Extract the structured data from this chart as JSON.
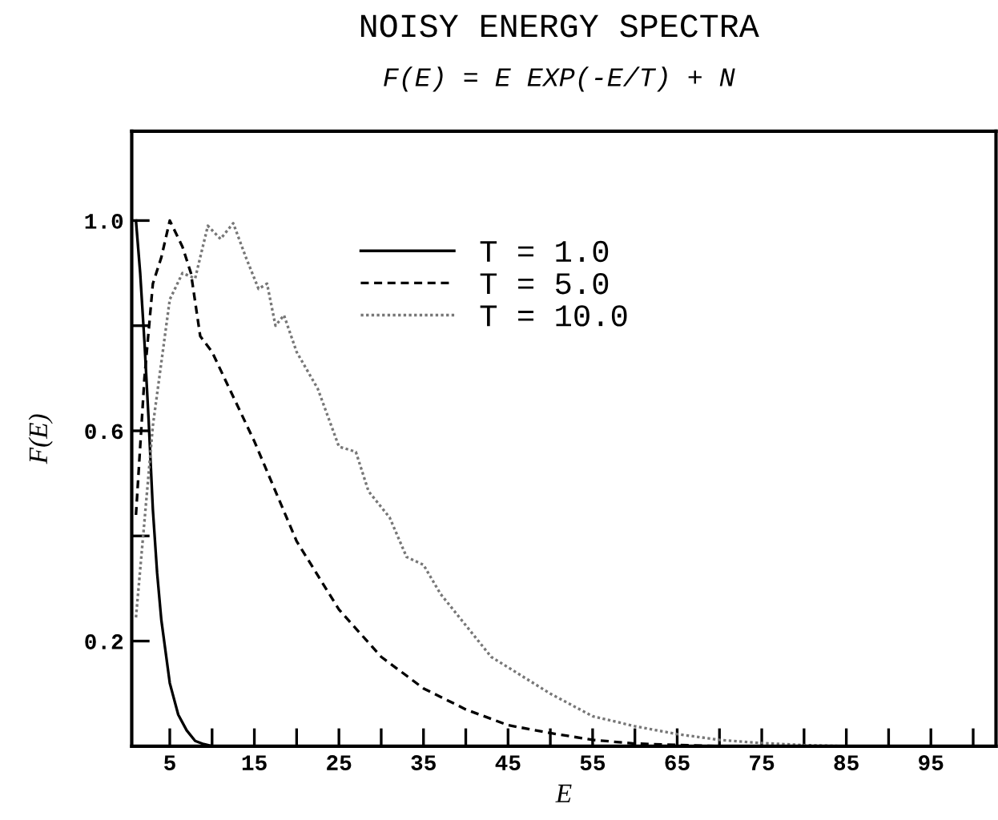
{
  "chart_data": {
    "type": "line",
    "title": "NOISY ENERGY SPECTRA",
    "subtitle": "F(E) = E EXP(-E/T) + N",
    "xlabel": "E",
    "ylabel": "F(E)",
    "xlim": [
      0.5,
      102.7
    ],
    "ylim": [
      0,
      1.17
    ],
    "xticks": [
      5,
      {
        "value": 10,
        "label": null
      },
      15,
      {
        "value": 20,
        "label": null
      },
      25,
      {
        "value": 30,
        "label": null
      },
      35,
      {
        "value": 40,
        "label": null
      },
      45,
      {
        "value": 50,
        "label": null
      },
      55,
      {
        "value": 60,
        "label": null
      },
      65,
      {
        "value": 70,
        "label": null
      },
      75,
      {
        "value": 80,
        "label": null
      },
      85,
      {
        "value": 90,
        "label": null
      },
      95,
      {
        "value": 100,
        "label": null
      }
    ],
    "yticks": [
      0.2,
      {
        "value": 0.4,
        "label": null
      },
      0.6,
      {
        "value": 0.8,
        "label": null
      },
      {
        "value": 1,
        "label": "1.0"
      }
    ],
    "legend": "top",
    "grid": false,
    "marker": "none",
    "series": [
      {
        "name": "T = 1.0",
        "color": "#000000",
        "line_style": "solid",
        "x": [
          1,
          1.5,
          2,
          2.5,
          3,
          3.5,
          4,
          5,
          6,
          7,
          8,
          9,
          10
        ],
        "values": [
          1.0,
          0.9,
          0.77,
          0.62,
          0.45,
          0.33,
          0.24,
          0.12,
          0.06,
          0.03,
          0.01,
          0.004,
          0
        ]
      },
      {
        "name": "T = 5.0",
        "color": "#000000",
        "line_style": "dashed",
        "x": [
          1,
          2,
          3,
          4,
          5,
          6.5,
          7.5,
          8.6,
          10,
          15,
          20,
          25,
          30,
          35,
          40,
          45,
          50,
          55,
          60,
          70,
          100
        ],
        "values": [
          0.44,
          0.7,
          0.88,
          0.93,
          1.0,
          0.95,
          0.9,
          0.78,
          0.75,
          0.58,
          0.39,
          0.26,
          0.17,
          0.11,
          0.07,
          0.04,
          0.025,
          0.012,
          0.005,
          0,
          0
        ]
      },
      {
        "name": "T = 10.0",
        "color": "#777777",
        "line_style": "dotted",
        "x": [
          1,
          3,
          5,
          6.5,
          8,
          9.5,
          11,
          12.5,
          14,
          15.5,
          16.5,
          17.5,
          18.5,
          20,
          22.5,
          25,
          27,
          28.5,
          31,
          33,
          35,
          37,
          40,
          43,
          45,
          50,
          55,
          60,
          65,
          70,
          75,
          80,
          85,
          100
        ],
        "values": [
          0.245,
          0.61,
          0.85,
          0.9,
          0.89,
          0.99,
          0.965,
          0.995,
          0.93,
          0.87,
          0.88,
          0.8,
          0.82,
          0.75,
          0.68,
          0.57,
          0.56,
          0.485,
          0.435,
          0.36,
          0.345,
          0.29,
          0.23,
          0.17,
          0.15,
          0.1,
          0.057,
          0.038,
          0.023,
          0.012,
          0.006,
          0.002,
          0,
          0
        ]
      }
    ]
  }
}
